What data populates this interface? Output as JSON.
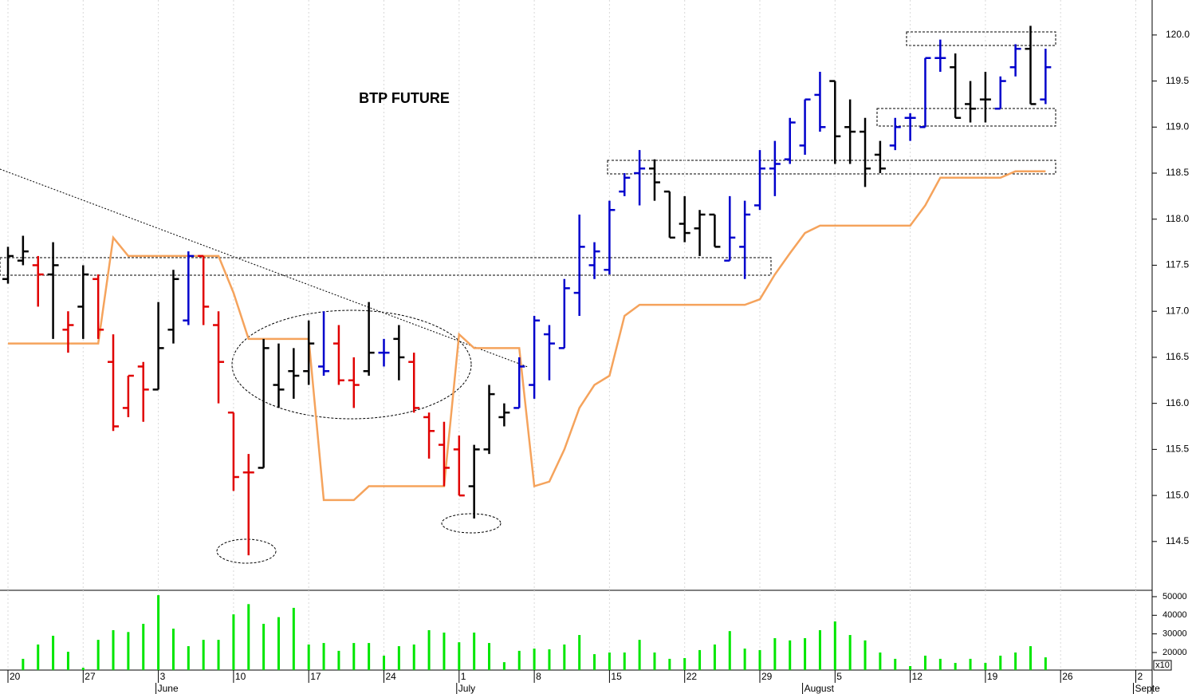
{
  "chart_data": [
    {
      "type": "ohlc",
      "title": "BTP FUTURE",
      "categories": [
        "20",
        null,
        null,
        null,
        null,
        "27",
        null,
        null,
        null,
        null,
        "3",
        null,
        null,
        null,
        null,
        "10",
        null,
        null,
        null,
        null,
        "17",
        null,
        null,
        null,
        null,
        "24",
        null,
        null,
        null,
        null,
        "1",
        null,
        null,
        null,
        null,
        "8",
        null,
        null,
        null,
        null,
        "15",
        null,
        null,
        null,
        null,
        "22",
        null,
        null,
        null,
        null,
        "29",
        null,
        null,
        null,
        null,
        "5",
        null,
        null,
        null,
        null,
        "12",
        null,
        null,
        null,
        null,
        "19",
        null,
        null,
        null,
        null,
        "26",
        null,
        null,
        null,
        null,
        "2"
      ],
      "month_labels": [
        null,
        null,
        null,
        null,
        null,
        null,
        null,
        null,
        null,
        null,
        "June",
        null,
        null,
        null,
        null,
        null,
        null,
        null,
        null,
        null,
        null,
        null,
        null,
        null,
        null,
        null,
        null,
        null,
        null,
        null,
        "July",
        null,
        null,
        null,
        null,
        null,
        null,
        null,
        null,
        null,
        null,
        null,
        null,
        null,
        null,
        null,
        null,
        null,
        null,
        null,
        null,
        null,
        null,
        "August",
        null,
        null,
        null,
        null,
        null,
        null,
        null,
        null,
        null,
        null,
        null,
        null,
        null,
        null,
        null,
        null,
        null,
        null,
        null,
        null,
        null,
        "Septe"
      ],
      "open": [
        117.35,
        117.55,
        117.5,
        117.4,
        116.8,
        117.05,
        117.35,
        116.45,
        115.95,
        116.4,
        116.15,
        116.8,
        116.9,
        117.6,
        116.85,
        115.9,
        115.25,
        115.3,
        116.2,
        116.35,
        116.35,
        116.4,
        116.65,
        116.25,
        116.35,
        116.55,
        116.7,
        116.45,
        115.85,
        115.55,
        115.5,
        115.1,
        115.5,
        115.85,
        115.95,
        116.2,
        116.75,
        116.6,
        117.2,
        117.5,
        117.45,
        118.3,
        118.5,
        118.55,
        118.3,
        117.95,
        117.9,
        118.05,
        117.55,
        117.7,
        118.15,
        118.55,
        118.65,
        118.8,
        119.35,
        119.5,
        119.0,
        118.95,
        118.7,
        118.8,
        119.1,
        119.0,
        119.75,
        119.65,
        119.25,
        119.3,
        119.2,
        119.65,
        119.85,
        119.3,
        null,
        null,
        null,
        null,
        null,
        null
      ],
      "high": [
        117.7,
        117.82,
        117.6,
        117.75,
        117.0,
        117.5,
        117.4,
        116.75,
        116.3,
        116.45,
        117.1,
        117.45,
        117.65,
        117.6,
        117.0,
        115.9,
        115.45,
        116.7,
        116.65,
        116.6,
        116.9,
        117.0,
        116.85,
        116.5,
        117.1,
        116.7,
        116.85,
        116.55,
        115.9,
        115.8,
        115.65,
        115.55,
        116.2,
        116.0,
        116.5,
        116.95,
        116.85,
        117.35,
        118.05,
        117.75,
        118.2,
        118.5,
        118.75,
        118.65,
        118.3,
        118.25,
        118.1,
        118.05,
        118.25,
        118.2,
        118.75,
        118.85,
        119.1,
        119.3,
        119.6,
        119.5,
        119.3,
        119.1,
        118.85,
        119.1,
        119.15,
        119.75,
        119.95,
        119.8,
        119.5,
        119.6,
        119.55,
        119.9,
        120.1,
        119.85,
        null,
        null,
        null,
        null,
        null,
        null
      ],
      "low": [
        117.3,
        117.5,
        117.05,
        116.7,
        116.55,
        116.7,
        116.7,
        115.7,
        115.85,
        115.8,
        116.15,
        116.65,
        116.85,
        116.85,
        116.0,
        115.05,
        114.35,
        115.3,
        115.95,
        116.05,
        116.2,
        116.3,
        116.2,
        115.95,
        116.3,
        116.4,
        116.25,
        115.9,
        115.4,
        115.1,
        115.0,
        114.75,
        115.45,
        115.75,
        115.95,
        116.05,
        116.25,
        116.6,
        116.95,
        117.35,
        117.4,
        118.25,
        118.15,
        118.2,
        117.8,
        117.75,
        117.6,
        117.7,
        117.55,
        117.35,
        118.1,
        118.25,
        118.6,
        118.7,
        118.95,
        118.6,
        118.6,
        118.35,
        118.5,
        118.75,
        118.85,
        119.0,
        119.6,
        119.1,
        119.05,
        119.05,
        119.2,
        119.55,
        119.25,
        119.25,
        null,
        null,
        null,
        null,
        null,
        null
      ],
      "close": [
        117.6,
        117.65,
        117.4,
        117.5,
        116.85,
        117.4,
        116.8,
        115.75,
        116.3,
        116.15,
        116.6,
        117.35,
        117.6,
        117.05,
        116.45,
        115.2,
        115.25,
        116.6,
        116.15,
        116.3,
        116.65,
        116.35,
        116.25,
        116.2,
        116.55,
        116.55,
        116.5,
        115.95,
        115.7,
        115.3,
        115.0,
        115.5,
        116.1,
        115.9,
        116.4,
        116.9,
        116.65,
        117.25,
        117.7,
        117.65,
        118.1,
        118.45,
        118.55,
        118.4,
        117.8,
        117.85,
        118.05,
        117.7,
        117.8,
        118.05,
        118.55,
        118.6,
        119.05,
        119.3,
        119.0,
        118.9,
        118.95,
        118.55,
        118.55,
        119.0,
        119.1,
        119.75,
        119.75,
        119.1,
        119.2,
        119.3,
        119.5,
        119.85,
        119.25,
        119.65,
        null,
        null,
        null,
        null,
        null,
        null
      ],
      "bar_colors": [
        "#000000",
        "#000000",
        "#e00000",
        "#000000",
        "#e00000",
        "#000000",
        "#e00000",
        "#e00000",
        "#e00000",
        "#e00000",
        "#000000",
        "#000000",
        "#0000cc",
        "#e00000",
        "#e00000",
        "#e00000",
        "#e00000",
        "#000000",
        "#000000",
        "#000000",
        "#000000",
        "#0000cc",
        "#e00000",
        "#e00000",
        "#000000",
        "#0000cc",
        "#000000",
        "#e00000",
        "#e00000",
        "#e00000",
        "#e00000",
        "#000000",
        "#000000",
        "#000000",
        "#0000cc",
        "#0000cc",
        "#0000cc",
        "#0000cc",
        "#0000cc",
        "#0000cc",
        "#0000cc",
        "#0000cc",
        "#0000cc",
        "#000000",
        "#000000",
        "#000000",
        "#000000",
        "#000000",
        "#0000cc",
        "#0000cc",
        "#0000cc",
        "#0000cc",
        "#0000cc",
        "#0000cc",
        "#0000cc",
        "#000000",
        "#000000",
        "#000000",
        "#000000",
        "#0000cc",
        "#0000cc",
        "#0000cc",
        "#0000cc",
        "#000000",
        "#000000",
        "#000000",
        "#0000cc",
        "#0000cc",
        "#000000",
        "#0000cc",
        null,
        null,
        null,
        null,
        null,
        null
      ],
      "overlay": {
        "color": "#f5a35c",
        "values": [
          116.65,
          116.65,
          116.65,
          116.65,
          116.65,
          116.65,
          116.65,
          117.8,
          117.6,
          117.6,
          117.6,
          117.6,
          117.6,
          117.6,
          117.6,
          117.2,
          116.7,
          116.7,
          116.7,
          116.7,
          116.7,
          114.95,
          114.95,
          114.95,
          115.1,
          115.1,
          115.1,
          115.1,
          115.1,
          115.1,
          116.75,
          116.6,
          116.6,
          116.6,
          116.6,
          115.1,
          115.15,
          115.5,
          115.95,
          116.2,
          116.3,
          116.95,
          117.07,
          117.07,
          117.07,
          117.07,
          117.07,
          117.07,
          117.07,
          117.07,
          117.13,
          117.4,
          117.63,
          117.85,
          117.93,
          117.93,
          117.93,
          117.93,
          117.93,
          117.93,
          117.93,
          118.15,
          118.45,
          118.45,
          118.45,
          118.45,
          118.45,
          118.52,
          118.52,
          118.52,
          null,
          null,
          null,
          null,
          null,
          null
        ]
      },
      "ylim": [
        113.97,
        120.38
      ],
      "yticks": [
        114.5,
        {
          "value": 115,
          "label": "115.0"
        },
        115.5,
        {
          "value": 116,
          "label": "116.0"
        },
        116.5,
        {
          "value": 117,
          "label": "117.0"
        },
        117.5,
        {
          "value": 118,
          "label": "118.0"
        },
        118.5,
        {
          "value": 119,
          "label": "119.0"
        },
        119.5,
        {
          "value": 120,
          "label": "120.0"
        }
      ]
    },
    {
      "type": "bar",
      "color": "#00e600",
      "scale_label": "x10",
      "values": [
        null,
        16600,
        24300,
        29000,
        20400,
        11800,
        26800,
        32000,
        31000,
        35400,
        50800,
        32800,
        23400,
        26800,
        26800,
        40500,
        46000,
        35400,
        39000,
        44000,
        24300,
        25100,
        20900,
        25100,
        25100,
        18300,
        23400,
        24300,
        32000,
        30700,
        25500,
        30700,
        25100,
        14800,
        20900,
        22100,
        21700,
        24300,
        29400,
        19100,
        20000,
        20000,
        26800,
        20000,
        16600,
        17000,
        21300,
        24300,
        31500,
        22100,
        21300,
        27700,
        26500,
        27700,
        32000,
        36700,
        29400,
        26500,
        20000,
        16600,
        12700,
        18300,
        16600,
        14400,
        16600,
        14400,
        18300,
        20000,
        23400,
        17400,
        null,
        null,
        null,
        null,
        null,
        null
      ],
      "ylim": [
        10560,
        53420
      ],
      "yticks": [
        20000,
        30000,
        40000,
        50000
      ]
    }
  ]
}
